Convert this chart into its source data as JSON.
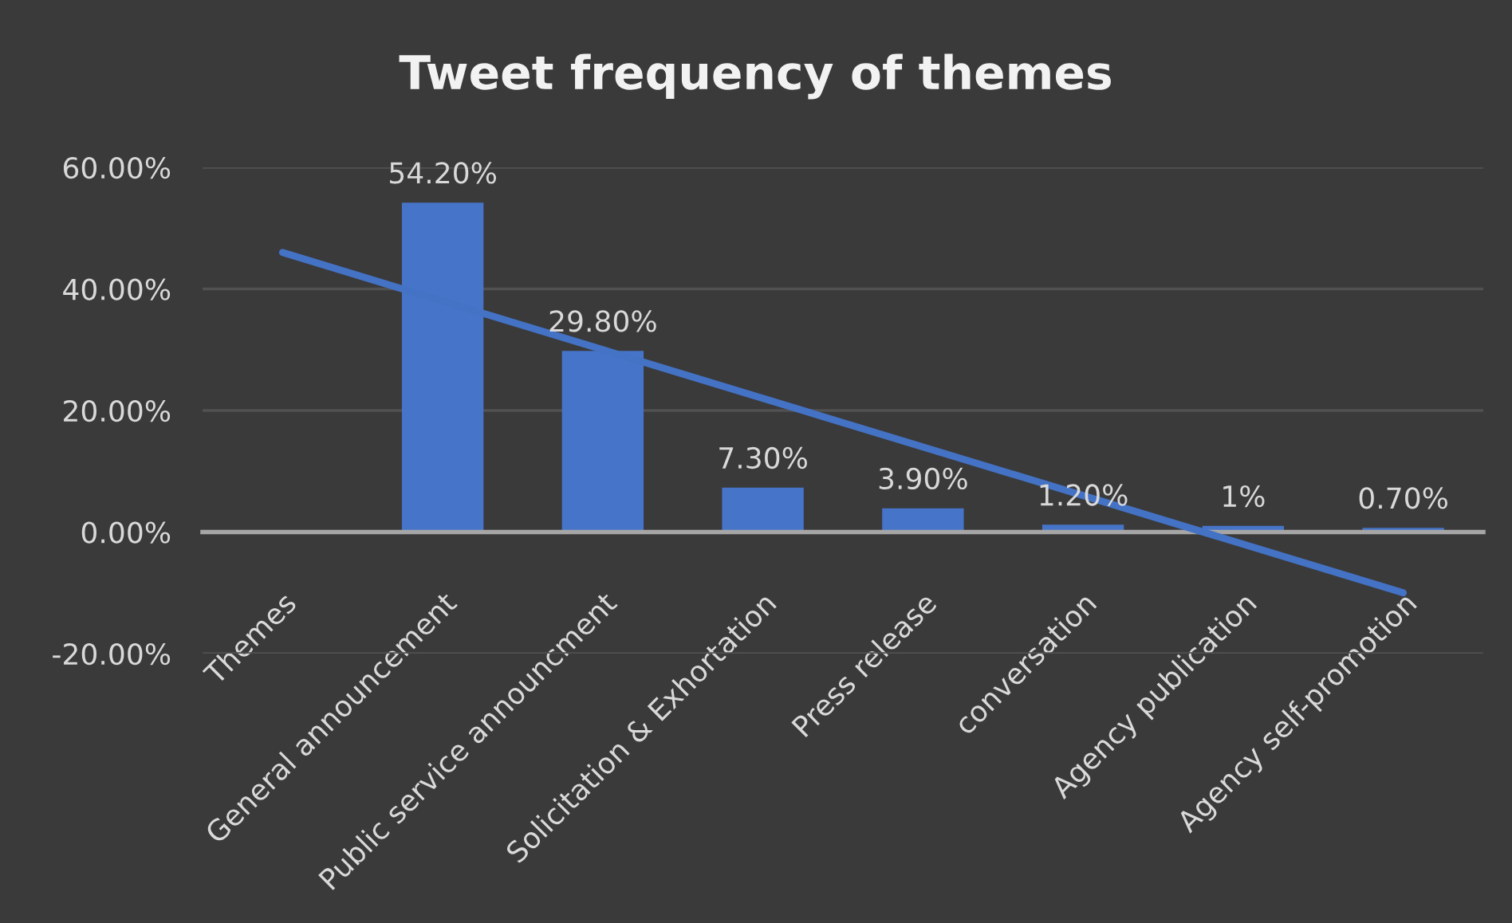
{
  "chart_data": {
    "type": "bar",
    "title": "Tweet frequency of themes",
    "categories": [
      "Themes",
      "General announcement",
      "Public service announcment",
      "Solicitation & Exhortation",
      "Press release",
      "conversation",
      "Agency publication",
      "Agency self-promotion"
    ],
    "series": [
      {
        "color": "#4674c8",
        "values": [
          null,
          54.2,
          29.8,
          7.3,
          3.9,
          1.2,
          1,
          0.7
        ],
        "value_labels": [
          null,
          "54.20%",
          "29.80%",
          "7.30%",
          "3.90%",
          "1.20%",
          "1%",
          "0.70%"
        ]
      },
      {
        "type": "line",
        "color": "#4472c4",
        "x": [
          "Themes",
          "Agency self-promotion"
        ],
        "values": [
          46,
          -10
        ]
      }
    ],
    "ylim": [
      -20,
      60
    ],
    "yticks": [
      {
        "value": -20,
        "label": "-20.00%"
      },
      {
        "value": 0,
        "label": "0.00%"
      },
      {
        "value": 20,
        "label": "20.00%"
      },
      {
        "value": 40,
        "label": "40.00%"
      },
      {
        "value": 60,
        "label": "60.00%"
      }
    ],
    "grid": "y"
  }
}
